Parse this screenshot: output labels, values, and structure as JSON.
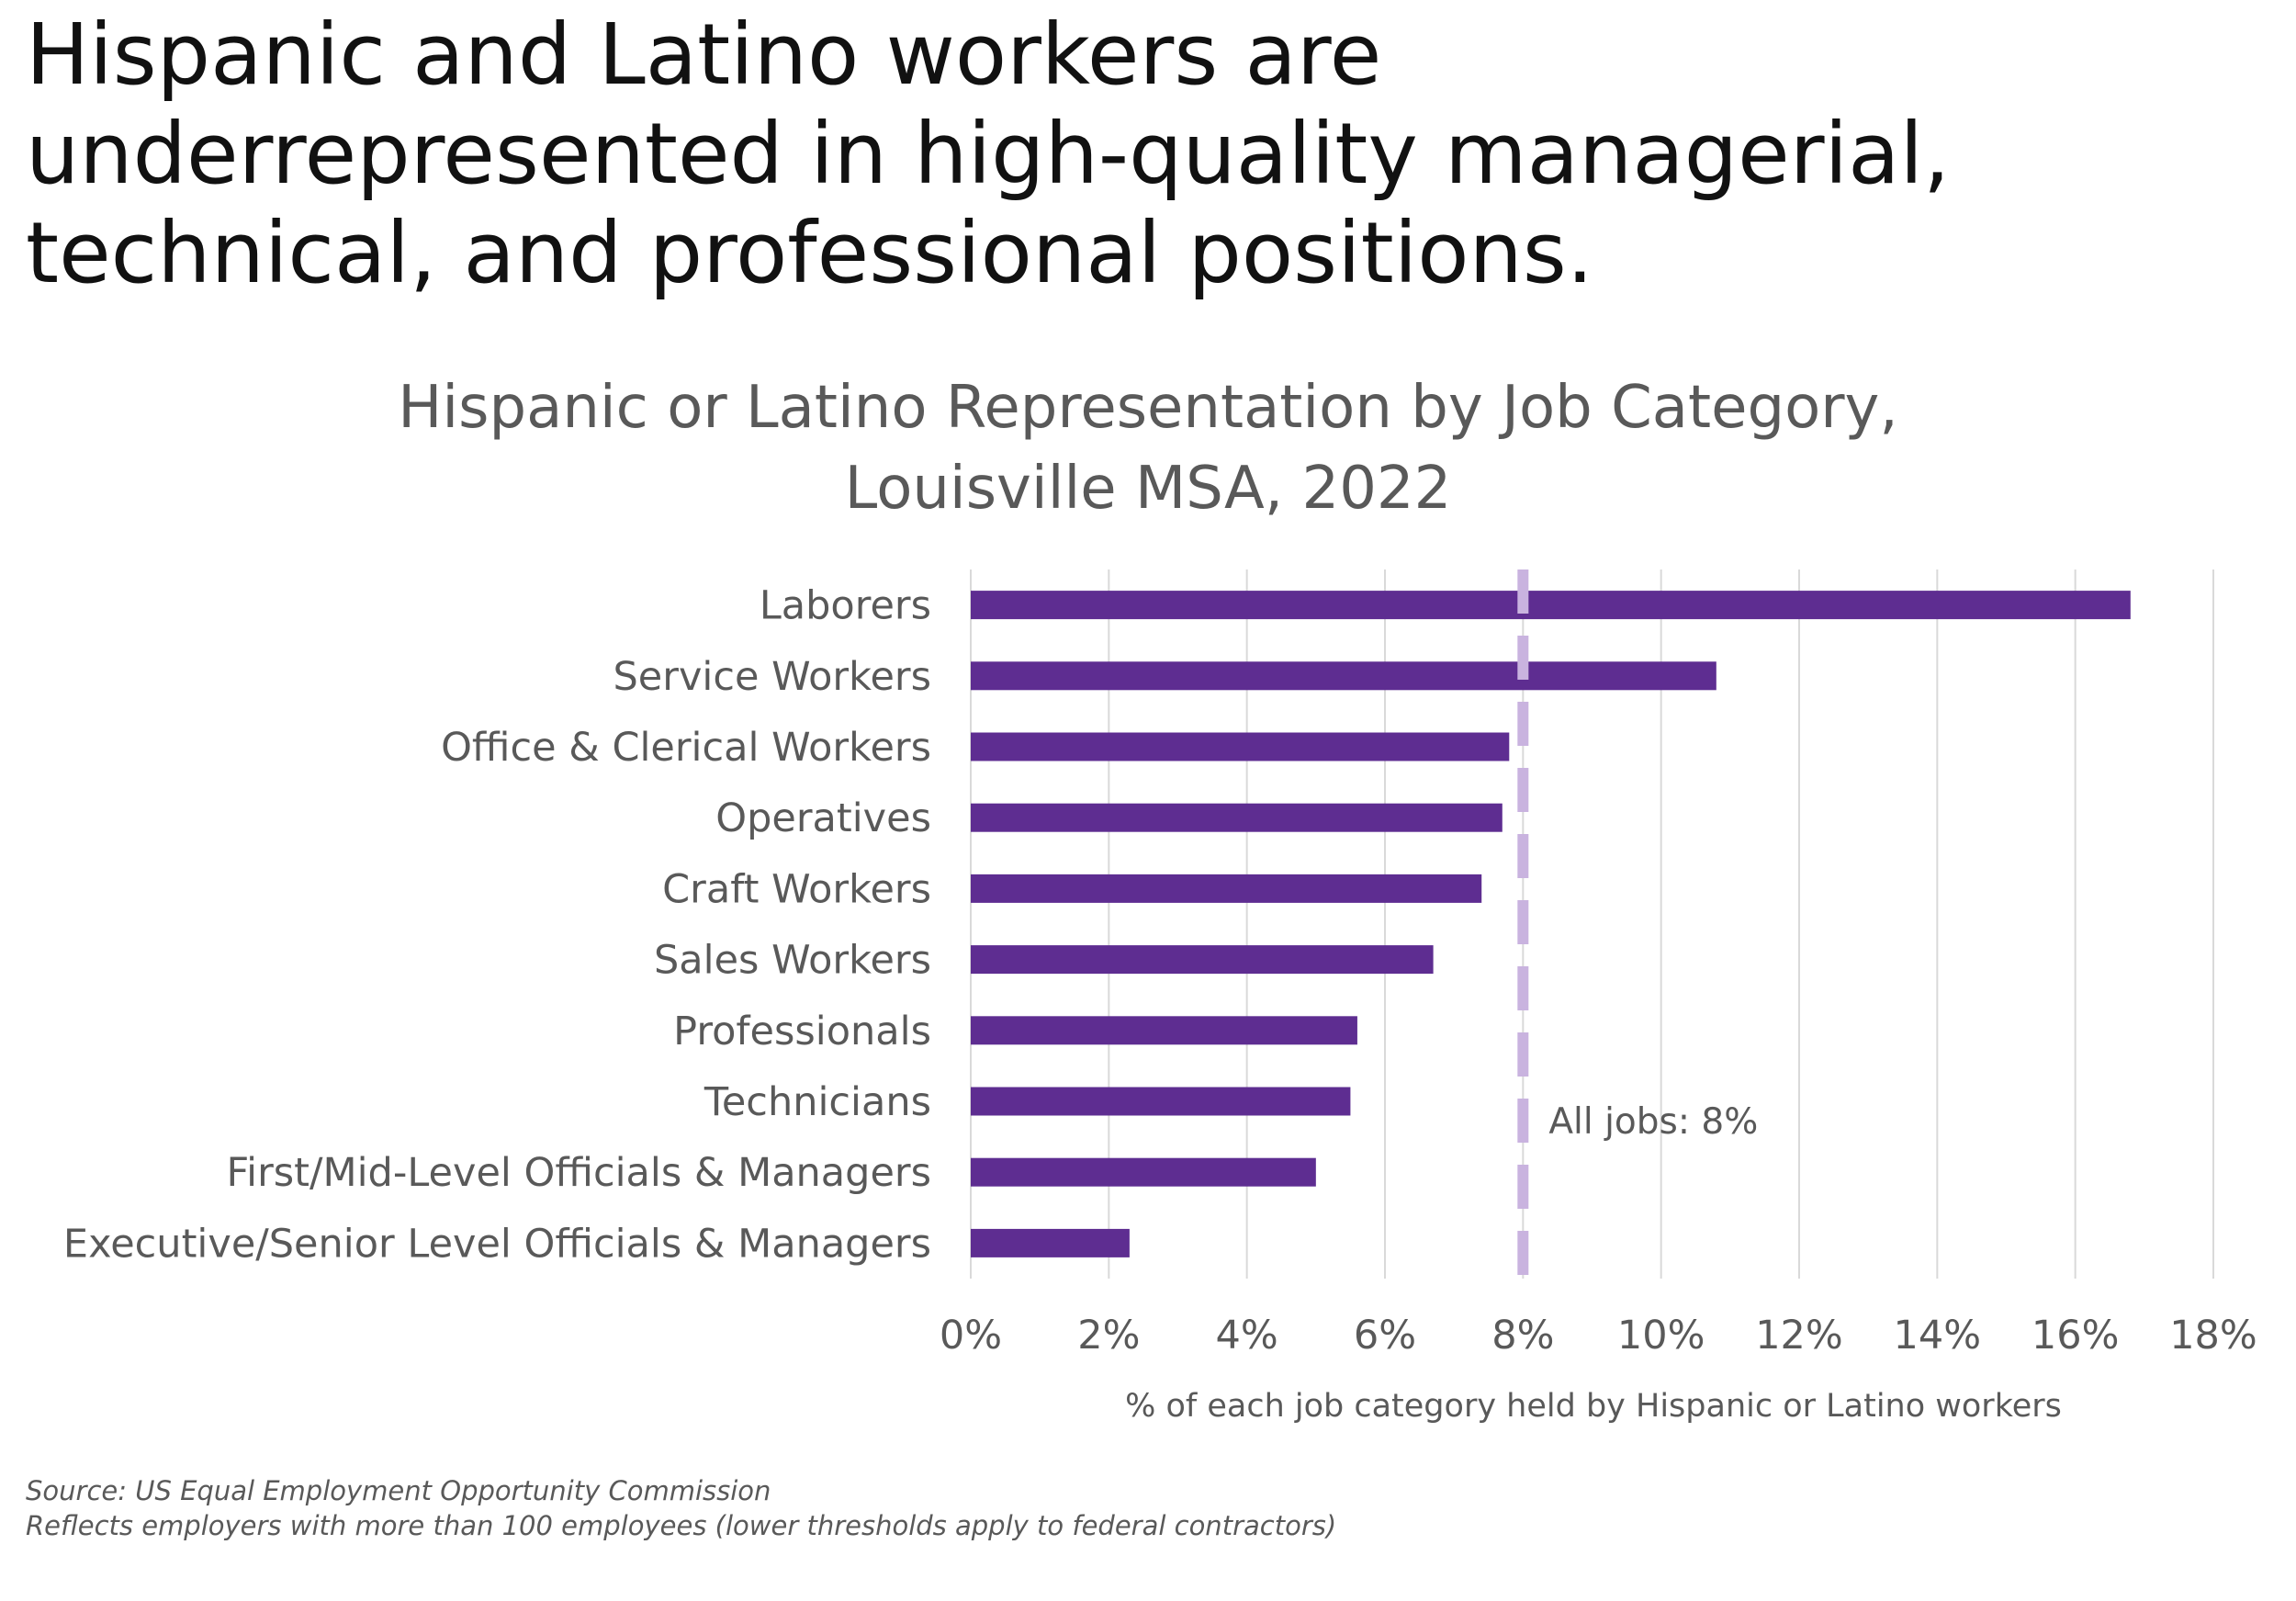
{
  "headline": {
    "line1": "Hispanic and Latino workers are",
    "line2": "underrepresented in high-quality managerial,",
    "line3": "technical, and professional positions."
  },
  "chart_data": {
    "type": "bar",
    "orientation": "horizontal",
    "title_line1": "Hispanic or Latino Representation by Job Category,",
    "title_line2": "Louisville MSA, 2022",
    "categories": [
      "Laborers",
      "Service Workers",
      "Office & Clerical Workers",
      "Operatives",
      "Craft Workers",
      "Sales Workers",
      "Professionals",
      "Technicians",
      "First/Mid-Level Officials & Managers",
      "Executive/Senior Level Officials & Managers"
    ],
    "values": [
      16.8,
      10.8,
      7.8,
      7.7,
      7.4,
      6.7,
      5.6,
      5.5,
      5.0,
      2.3
    ],
    "xlim": [
      0,
      18
    ],
    "xticks": [
      0,
      2,
      4,
      6,
      8,
      10,
      12,
      14,
      16,
      18
    ],
    "tick_suffix": "%",
    "xlabel": "% of each job category held by Hispanic or Latino workers",
    "ylabel": "",
    "grid": true,
    "reference_line": {
      "value": 8,
      "label": "All jobs: 8%"
    },
    "colors": {
      "bar": "#5e2d91",
      "reference": "#c9b3df",
      "grid": "#d9d9d9",
      "text": "#595959"
    }
  },
  "footnotes": {
    "source": "Source: US Equal Employment Opportunity Commission",
    "note": "Reflects employers with more than 100 employees (lower thresholds apply to federal contractors)"
  }
}
